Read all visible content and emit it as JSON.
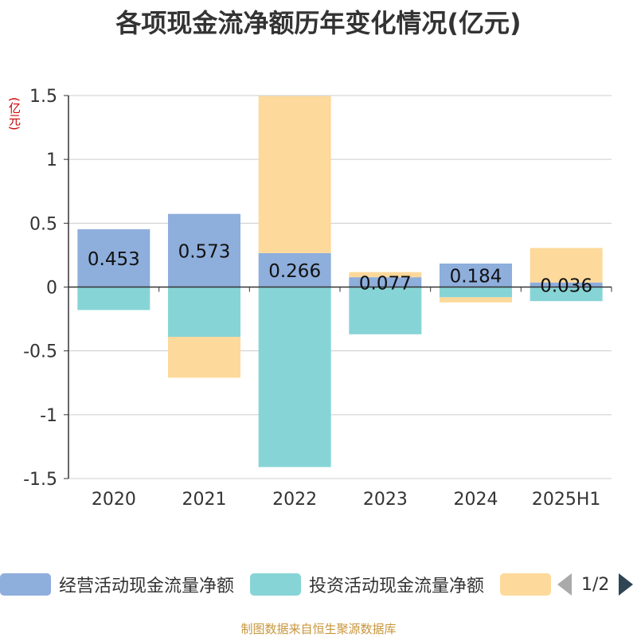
{
  "title": "各项现金流净额历年变化情况(亿元)",
  "unit_label": "(亿元)",
  "source": "制图数据来自恒生聚源数据库",
  "pager": {
    "text": "1/2"
  },
  "colors": {
    "operating": "#8eaedc",
    "investing": "#87d4d6",
    "financing": "#fdd99b"
  },
  "chart_data": {
    "type": "bar",
    "stacked": true,
    "categories": [
      "2020",
      "2021",
      "2022",
      "2023",
      "2024",
      "2025H1"
    ],
    "ylim": [
      -1.5,
      1.5
    ],
    "yticks": [
      1.5,
      1,
      0.5,
      0,
      -0.5,
      -1,
      -1.5
    ],
    "ytick_labels": [
      "1.5",
      "1",
      "0.5",
      "0",
      "-0.5",
      "-1",
      "-1.5"
    ],
    "grid": true,
    "legend_position": "bottom",
    "series": [
      {
        "name": "经营活动现金流量净额",
        "key": "operating",
        "values": [
          0.453,
          0.573,
          0.266,
          0.077,
          0.184,
          0.036
        ],
        "labels": [
          "0.453",
          "0.573",
          "0.266",
          "0.077",
          "0.184",
          "0.036"
        ]
      },
      {
        "name": "投资活动现金流量净额",
        "key": "investing",
        "values": [
          -0.18,
          -0.39,
          -1.41,
          -0.37,
          -0.08,
          -0.11
        ]
      },
      {
        "name": "",
        "key": "financing",
        "values": [
          0.0,
          -0.32,
          1.23,
          0.04,
          -0.04,
          0.27
        ]
      }
    ]
  }
}
